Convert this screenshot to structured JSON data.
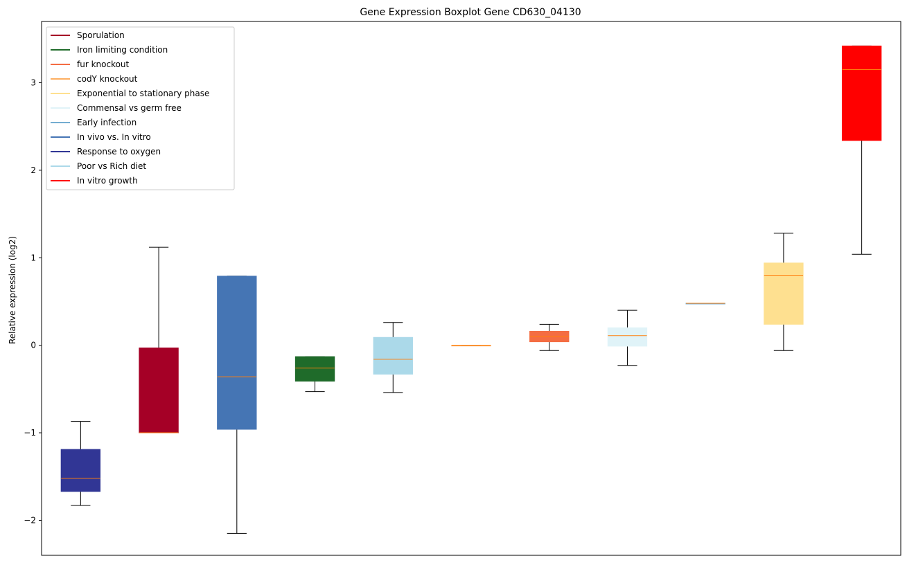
{
  "chart_data": {
    "type": "box",
    "title": "Gene Expression Boxplot Gene CD630_04130",
    "xlabel": "",
    "ylabel": "Relative expression (log2)",
    "ylim": [
      -2.4,
      3.7
    ],
    "yticks": [
      -2,
      -1,
      0,
      1,
      2,
      3
    ],
    "ytick_labels": [
      "−2",
      "−1",
      "0",
      "1",
      "2",
      "3"
    ],
    "grid": false,
    "legend_position": "upper-left",
    "legend": [
      {
        "name": "Sporulation",
        "color": "#a50026"
      },
      {
        "name": "Iron limiting condition",
        "color": "#1f6b2a"
      },
      {
        "name": "fur knockout",
        "color": "#f46d43"
      },
      {
        "name": "codY knockout",
        "color": "#fdae61"
      },
      {
        "name": "Exponential to stationary phase",
        "color": "#fee090"
      },
      {
        "name": "Commensal vs germ free",
        "color": "#e0f3f8"
      },
      {
        "name": "Early infection",
        "color": "#74add1"
      },
      {
        "name": "In vivo vs. In vitro",
        "color": "#4575b4"
      },
      {
        "name": "Response to oxygen",
        "color": "#313695"
      },
      {
        "name": "Poor vs Rich diet",
        "color": "#abd9e9"
      },
      {
        "name": "In vitro growth",
        "color": "#ff0000"
      }
    ],
    "boxes": [
      {
        "condition": "Response to oxygen",
        "color": "#313695",
        "whisker_low": -1.83,
        "q1": -1.67,
        "median": -1.52,
        "q3": -1.19,
        "whisker_high": -0.87
      },
      {
        "condition": "Sporulation",
        "color": "#a50026",
        "whisker_low": -1.0,
        "q1": -1.0,
        "median": -1.0,
        "q3": -0.03,
        "whisker_high": 1.12
      },
      {
        "condition": "In vivo vs. In vitro",
        "color": "#4575b4",
        "whisker_low": -2.15,
        "q1": -0.96,
        "median": -0.36,
        "q3": 0.79,
        "whisker_high": 0.79
      },
      {
        "condition": "Iron limiting condition",
        "color": "#1f6b2a",
        "whisker_low": -0.53,
        "q1": -0.41,
        "median": -0.26,
        "q3": -0.13,
        "whisker_high": -0.13
      },
      {
        "condition": "Poor vs Rich diet",
        "color": "#abd9e9",
        "whisker_low": -0.54,
        "q1": -0.33,
        "median": -0.16,
        "q3": 0.09,
        "whisker_high": 0.26
      },
      {
        "condition": "codY knockout",
        "color": "#fdae61",
        "whisker_low": 0.0,
        "q1": 0.0,
        "median": 0.0,
        "q3": 0.0,
        "whisker_high": 0.0
      },
      {
        "condition": "fur knockout",
        "color": "#f46d43",
        "whisker_low": -0.06,
        "q1": 0.04,
        "median": 0.1,
        "q3": 0.16,
        "whisker_high": 0.24
      },
      {
        "condition": "Commensal vs germ free",
        "color": "#e0f3f8",
        "whisker_low": -0.23,
        "q1": -0.01,
        "median": 0.11,
        "q3": 0.2,
        "whisker_high": 0.4
      },
      {
        "condition": "Early infection",
        "color": "#74add1",
        "whisker_low": 0.48,
        "q1": 0.48,
        "median": 0.48,
        "q3": 0.48,
        "whisker_high": 0.48
      },
      {
        "condition": "Exponential to stationary phase",
        "color": "#fee090",
        "whisker_low": -0.06,
        "q1": 0.24,
        "median": 0.8,
        "q3": 0.94,
        "whisker_high": 1.28
      },
      {
        "condition": "In vitro growth",
        "color": "#ff0000",
        "whisker_low": 1.04,
        "q1": 2.34,
        "median": 3.15,
        "q3": 3.42,
        "whisker_high": 3.42
      }
    ],
    "median_color": "#ff7f0e",
    "whisker_color": "#000000"
  }
}
